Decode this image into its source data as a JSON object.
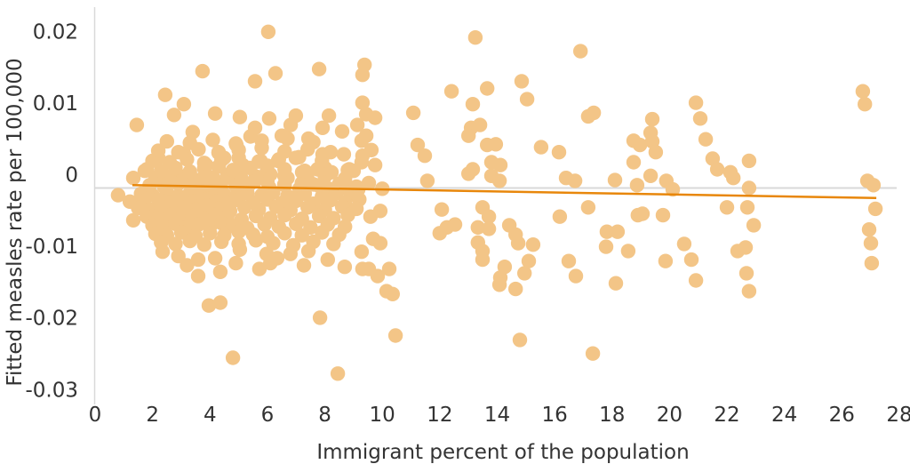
{
  "chart_data": {
    "type": "scatter",
    "title": "",
    "xlabel": "Immigrant percent of the population",
    "ylabel": "Fitted measles rate per 100,000",
    "xlim": [
      0,
      28
    ],
    "ylim": [
      -0.031,
      0.0252
    ],
    "grid": "zero-line-only",
    "legend_position": "none",
    "x_ticks": [
      0,
      2,
      4,
      6,
      8,
      10,
      12,
      14,
      16,
      18,
      20,
      22,
      24,
      26,
      28
    ],
    "x_tick_labels": [
      "0",
      "2",
      "4",
      "6",
      "8",
      "10",
      "12",
      "14",
      "16",
      "18",
      "20",
      "22",
      "24",
      "26",
      "28"
    ],
    "y_ticks": [
      0.02,
      0.01,
      0,
      -0.01,
      -0.02,
      -0.03
    ],
    "y_tick_labels": [
      "0.02",
      "0.01",
      "0",
      "-0.01",
      "-0.02",
      "-0.03"
    ],
    "point_color": "#F3C587",
    "trend_color": "#E8870B",
    "grid_color": "#D9D9D9",
    "text_color": "#333333",
    "trendline": {
      "x1": 1.3,
      "y1": 0.0004,
      "x2": 27.2,
      "y2": -0.0014
    },
    "points": [
      [
        6.03,
        0.0218
      ],
      [
        13.24,
        0.021
      ],
      [
        16.9,
        0.0191
      ],
      [
        9.38,
        0.0172
      ],
      [
        9.31,
        0.0158
      ],
      [
        3.74,
        0.0163
      ],
      [
        5.57,
        0.0149
      ],
      [
        6.28,
        0.016
      ],
      [
        7.8,
        0.0166
      ],
      [
        14.85,
        0.0149
      ],
      [
        12.41,
        0.0135
      ],
      [
        13.65,
        0.0139
      ],
      [
        15.04,
        0.0124
      ],
      [
        11.08,
        0.0105
      ],
      [
        13.15,
        0.0117
      ],
      [
        17.36,
        0.0105
      ],
      [
        17.17,
        0.01
      ],
      [
        26.73,
        0.0135
      ],
      [
        26.8,
        0.0117
      ],
      [
        20.92,
        0.0119
      ],
      [
        21.07,
        0.0097
      ],
      [
        2.44,
        0.013
      ],
      [
        3.09,
        0.0117
      ],
      [
        2.75,
        0.0102
      ],
      [
        4.18,
        0.0104
      ],
      [
        5.04,
        0.0099
      ],
      [
        1.45,
        0.0088
      ],
      [
        3.4,
        0.0078
      ],
      [
        4.3,
        0.005
      ],
      [
        2.2,
        0.0042
      ],
      [
        3.09,
        0.0048
      ],
      [
        3.87,
        0.0032
      ],
      [
        4.49,
        0.0042
      ],
      [
        4.92,
        0.006
      ],
      [
        5.41,
        0.0072
      ],
      [
        5.57,
        0.0084
      ],
      [
        6.06,
        0.0097
      ],
      [
        6.5,
        0.0073
      ],
      [
        6.81,
        0.0088
      ],
      [
        6.99,
        0.0101
      ],
      [
        7.43,
        0.0069
      ],
      [
        7.92,
        0.0084
      ],
      [
        8.14,
        0.0101
      ],
      [
        8.6,
        0.0079
      ],
      [
        9.13,
        0.0088
      ],
      [
        9.28,
        0.0066
      ],
      [
        8.66,
        0.0047
      ],
      [
        7.92,
        0.0047
      ],
      [
        6.99,
        0.0042
      ],
      [
        6.37,
        0.0038
      ],
      [
        5.76,
        0.0038
      ],
      [
        5.14,
        0.0032
      ],
      [
        5.97,
        0.0022
      ],
      [
        6.59,
        0.0017
      ],
      [
        7.21,
        0.0022
      ],
      [
        7.74,
        0.0026
      ],
      [
        8.23,
        0.0022
      ],
      [
        8.85,
        0.0026
      ],
      [
        9.28,
        0.0036
      ],
      [
        1.33,
        0.0014
      ],
      [
        1.73,
        0.0024
      ],
      [
        2.17,
        0.0014
      ],
      [
        2.66,
        0.0017
      ],
      [
        3.09,
        0.001
      ],
      [
        3.5,
        0.0005
      ],
      [
        3.9,
        0.0014
      ],
      [
        4.33,
        0.0007
      ],
      [
        4.73,
        0.0014
      ],
      [
        5.14,
        0.0005
      ],
      [
        5.57,
        0.001
      ],
      [
        6.06,
        0.0001
      ],
      [
        6.59,
        0.0005
      ],
      [
        7.12,
        -0.0001
      ],
      [
        7.61,
        0.0005
      ],
      [
        8.14,
        -0.0001
      ],
      [
        8.66,
        0.0004
      ],
      [
        9.16,
        -0.0002
      ],
      [
        9.31,
        0.0119
      ],
      [
        9.44,
        0.0103
      ],
      [
        9.44,
        0.0073
      ],
      [
        9.62,
        0.0053
      ],
      [
        9.75,
        0.0032
      ],
      [
        9.31,
        0.0045
      ],
      [
        9.0,
        0.0024
      ],
      [
        8.7,
        0.0001
      ],
      [
        9.07,
        -0.0005
      ],
      [
        9.53,
        0.0007
      ],
      [
        10.0,
        -0.0001
      ],
      [
        9.75,
        0.0098
      ],
      [
        11.23,
        0.006
      ],
      [
        11.48,
        0.0045
      ],
      [
        11.57,
        0.001
      ],
      [
        9.59,
        -0.004
      ],
      [
        9.93,
        -0.0032
      ],
      [
        9.68,
        -0.0071
      ],
      [
        9.93,
        -0.0077
      ],
      [
        9.53,
        -0.0113
      ],
      [
        9.84,
        -0.0123
      ],
      [
        10.24,
        -0.0113
      ],
      [
        10.15,
        -0.0144
      ],
      [
        10.36,
        -0.0148
      ],
      [
        10.46,
        -0.0206
      ],
      [
        12.07,
        -0.003
      ],
      [
        12.0,
        -0.0063
      ],
      [
        12.25,
        -0.0055
      ],
      [
        12.53,
        -0.0051
      ],
      [
        13.49,
        -0.0027
      ],
      [
        13.71,
        -0.004
      ],
      [
        13.33,
        -0.0055
      ],
      [
        13.71,
        -0.0057
      ],
      [
        13.33,
        -0.0076
      ],
      [
        13.49,
        -0.0088
      ],
      [
        13.49,
        -0.01
      ],
      [
        14.42,
        -0.0052
      ],
      [
        14.64,
        -0.0065
      ],
      [
        14.73,
        -0.0077
      ],
      [
        15.25,
        -0.0079
      ],
      [
        14.26,
        -0.011
      ],
      [
        15.1,
        -0.0102
      ],
      [
        14.95,
        -0.0119
      ],
      [
        14.11,
        -0.0125
      ],
      [
        14.08,
        -0.0135
      ],
      [
        14.64,
        -0.0141
      ],
      [
        14.79,
        -0.0212
      ],
      [
        13.09,
        0.0084
      ],
      [
        13.4,
        0.0088
      ],
      [
        13.0,
        0.0073
      ],
      [
        13.15,
        0.0026
      ],
      [
        13.0,
        0.002
      ],
      [
        13.65,
        0.006
      ],
      [
        13.95,
        0.0061
      ],
      [
        13.8,
        0.0036
      ],
      [
        14.11,
        0.0032
      ],
      [
        13.8,
        0.0017
      ],
      [
        14.08,
        0.001
      ],
      [
        15.53,
        0.0057
      ],
      [
        16.15,
        0.005
      ],
      [
        16.18,
        -0.004
      ],
      [
        16.49,
        -0.0102
      ],
      [
        16.74,
        -0.0123
      ],
      [
        17.17,
        -0.0027
      ],
      [
        18.9,
        -0.0038
      ],
      [
        17.82,
        -0.0061
      ],
      [
        18.19,
        -0.0061
      ],
      [
        17.79,
        -0.0082
      ],
      [
        18.56,
        -0.0088
      ],
      [
        18.13,
        -0.0133
      ],
      [
        17.33,
        -0.0231
      ],
      [
        16.4,
        0.0014
      ],
      [
        16.71,
        0.001
      ],
      [
        18.1,
        0.0011
      ],
      [
        18.87,
        0.0004
      ],
      [
        18.75,
        0.0066
      ],
      [
        18.75,
        0.0036
      ],
      [
        19.4,
        0.0096
      ],
      [
        19.34,
        0.0077
      ],
      [
        19.4,
        0.0065
      ],
      [
        19.52,
        0.005
      ],
      [
        18.97,
        0.006
      ],
      [
        21.26,
        0.0068
      ],
      [
        21.5,
        0.0041
      ],
      [
        21.66,
        0.0026
      ],
      [
        22.12,
        0.0022
      ],
      [
        22.22,
        0.0014
      ],
      [
        22.77,
        0.0038
      ],
      [
        22.77,
        0.0
      ],
      [
        19.34,
        0.0017
      ],
      [
        19.89,
        0.001
      ],
      [
        20.11,
        -0.0002
      ],
      [
        19.06,
        -0.0036
      ],
      [
        19.77,
        -0.0038
      ],
      [
        22.0,
        -0.0027
      ],
      [
        22.71,
        -0.0027
      ],
      [
        22.93,
        -0.0052
      ],
      [
        20.51,
        -0.0078
      ],
      [
        22.37,
        -0.0088
      ],
      [
        22.65,
        -0.0083
      ],
      [
        19.86,
        -0.0102
      ],
      [
        20.76,
        -0.01
      ],
      [
        20.92,
        -0.0129
      ],
      [
        22.68,
        -0.0119
      ],
      [
        22.77,
        -0.0144
      ],
      [
        26.89,
        0.001
      ],
      [
        27.1,
        0.0004
      ],
      [
        27.17,
        -0.0029
      ],
      [
        26.95,
        -0.0058
      ],
      [
        27.01,
        -0.0077
      ],
      [
        27.04,
        -0.0105
      ],
      [
        2.35,
        -0.0089
      ],
      [
        3.59,
        -0.01
      ],
      [
        3.59,
        -0.0123
      ],
      [
        4.18,
        -0.0098
      ],
      [
        4.36,
        -0.0117
      ],
      [
        5.04,
        -0.0086
      ],
      [
        5.72,
        -0.0113
      ],
      [
        5.97,
        -0.0092
      ],
      [
        6.34,
        -0.0098
      ],
      [
        7.27,
        -0.0108
      ],
      [
        7.43,
        -0.0088
      ],
      [
        8.69,
        -0.011
      ],
      [
        9.28,
        -0.0089
      ],
      [
        9.31,
        -0.0113
      ],
      [
        3.96,
        -0.0164
      ],
      [
        4.36,
        -0.016
      ],
      [
        7.83,
        -0.0181
      ],
      [
        4.8,
        -0.0237
      ],
      [
        8.45,
        -0.0259
      ],
      [
        0.8,
        -0.001
      ],
      [
        1.21,
        -0.0019
      ],
      [
        1.33,
        -0.0045
      ],
      [
        1.6,
        -0.0008
      ],
      [
        2.0,
        -0.001
      ],
      [
        2.5,
        -0.0006
      ],
      [
        2.9,
        -0.0011
      ],
      [
        3.3,
        -0.0007
      ],
      [
        3.7,
        -0.001
      ],
      [
        4.1,
        -0.0006
      ],
      [
        4.5,
        -0.0009
      ],
      [
        4.9,
        -0.0012
      ],
      [
        5.3,
        -0.0007
      ],
      [
        5.8,
        -0.001
      ],
      [
        6.2,
        -0.0006
      ],
      [
        6.7,
        -0.0011
      ],
      [
        7.3,
        -0.0008
      ],
      [
        7.9,
        -0.0012
      ],
      [
        8.4,
        -0.0007
      ],
      [
        8.9,
        -0.001
      ],
      [
        1.7,
        -0.0018
      ],
      [
        2.2,
        -0.0016
      ],
      [
        2.6,
        -0.002
      ],
      [
        3.0,
        -0.0017
      ],
      [
        3.4,
        -0.0021
      ],
      [
        3.8,
        -0.0016
      ],
      [
        4.2,
        -0.0019
      ],
      [
        4.6,
        -0.0022
      ],
      [
        5.0,
        -0.0017
      ],
      [
        5.5,
        -0.002
      ],
      [
        6.0,
        -0.0016
      ],
      [
        6.5,
        -0.0021
      ],
      [
        7.0,
        -0.0018
      ],
      [
        7.6,
        -0.0022
      ],
      [
        8.2,
        -0.0017
      ],
      [
        8.7,
        -0.002
      ],
      [
        9.2,
        -0.0016
      ],
      [
        1.5,
        -0.0028
      ],
      [
        1.9,
        -0.003
      ],
      [
        2.3,
        -0.0026
      ],
      [
        2.7,
        -0.0031
      ],
      [
        3.1,
        -0.0027
      ],
      [
        3.5,
        -0.003
      ],
      [
        3.9,
        -0.0025
      ],
      [
        4.3,
        -0.0029
      ],
      [
        4.7,
        -0.0032
      ],
      [
        5.2,
        -0.0027
      ],
      [
        5.7,
        -0.003
      ],
      [
        6.3,
        -0.0026
      ],
      [
        6.8,
        -0.0031
      ],
      [
        7.4,
        -0.0027
      ],
      [
        8.0,
        -0.003
      ],
      [
        8.6,
        -0.0026
      ],
      [
        9.1,
        -0.0029
      ],
      [
        1.8,
        -0.004
      ],
      [
        2.2,
        -0.0042
      ],
      [
        2.6,
        -0.0038
      ],
      [
        3.0,
        -0.0043
      ],
      [
        3.4,
        -0.0039
      ],
      [
        3.8,
        -0.0042
      ],
      [
        4.2,
        -0.0037
      ],
      [
        4.6,
        -0.0041
      ],
      [
        5.1,
        -0.0044
      ],
      [
        5.6,
        -0.0039
      ],
      [
        6.1,
        -0.0042
      ],
      [
        6.6,
        -0.0038
      ],
      [
        7.2,
        -0.0043
      ],
      [
        7.8,
        -0.0039
      ],
      [
        8.3,
        -0.0042
      ],
      [
        8.8,
        -0.0038
      ],
      [
        2.0,
        -0.0052
      ],
      [
        2.4,
        -0.0054
      ],
      [
        2.8,
        -0.005
      ],
      [
        3.2,
        -0.0055
      ],
      [
        3.6,
        -0.0051
      ],
      [
        4.0,
        -0.0054
      ],
      [
        4.4,
        -0.0049
      ],
      [
        4.8,
        -0.0053
      ],
      [
        5.3,
        -0.0056
      ],
      [
        5.9,
        -0.0051
      ],
      [
        6.4,
        -0.0054
      ],
      [
        7.0,
        -0.005
      ],
      [
        7.5,
        -0.0055
      ],
      [
        8.1,
        -0.0051
      ],
      [
        8.7,
        -0.0054
      ],
      [
        2.1,
        -0.0064
      ],
      [
        2.5,
        -0.0066
      ],
      [
        3.0,
        -0.0062
      ],
      [
        3.5,
        -0.0067
      ],
      [
        4.0,
        -0.0063
      ],
      [
        4.5,
        -0.0066
      ],
      [
        5.0,
        -0.0061
      ],
      [
        5.5,
        -0.0065
      ],
      [
        6.0,
        -0.0068
      ],
      [
        6.6,
        -0.0063
      ],
      [
        7.2,
        -0.0066
      ],
      [
        7.9,
        -0.0062
      ],
      [
        8.5,
        -0.0065
      ],
      [
        2.3,
        -0.0076
      ],
      [
        2.8,
        -0.0078
      ],
      [
        3.3,
        -0.0074
      ],
      [
        3.8,
        -0.0079
      ],
      [
        4.4,
        -0.0075
      ],
      [
        5.0,
        -0.0078
      ],
      [
        5.6,
        -0.0073
      ],
      [
        6.2,
        -0.0077
      ],
      [
        6.9,
        -0.008
      ],
      [
        7.6,
        -0.0075
      ],
      [
        8.3,
        -0.0078
      ],
      [
        1.9,
        0.0004
      ],
      [
        2.4,
        0.0002
      ],
      [
        2.9,
        0.0006
      ],
      [
        3.4,
        0.0001
      ],
      [
        3.9,
        0.0005
      ],
      [
        4.4,
        0.0008
      ],
      [
        4.9,
        0.0003
      ],
      [
        5.4,
        0.0006
      ],
      [
        6.0,
        0.0009
      ],
      [
        6.6,
        0.0004
      ],
      [
        7.2,
        0.0007
      ],
      [
        7.8,
        0.0003
      ],
      [
        8.5,
        0.0006
      ],
      [
        9.1,
        0.0002
      ],
      [
        2.1,
        0.0014
      ],
      [
        2.6,
        0.0012
      ],
      [
        3.1,
        0.0016
      ],
      [
        3.6,
        0.0011
      ],
      [
        4.1,
        0.0015
      ],
      [
        4.6,
        0.0018
      ],
      [
        5.1,
        0.0013
      ],
      [
        5.6,
        0.0016
      ],
      [
        6.1,
        0.0019
      ],
      [
        6.7,
        0.0014
      ],
      [
        7.4,
        0.0012
      ],
      [
        8.0,
        0.0016
      ],
      [
        8.7,
        0.0013
      ],
      [
        1.8,
        0.0026
      ],
      [
        2.3,
        0.0024
      ],
      [
        2.8,
        0.0028
      ],
      [
        3.3,
        0.0023
      ],
      [
        3.8,
        0.0027
      ],
      [
        4.3,
        0.003
      ],
      [
        4.8,
        0.0025
      ],
      [
        5.4,
        0.0028
      ],
      [
        6.0,
        0.0031
      ],
      [
        6.6,
        0.0026
      ],
      [
        7.3,
        0.0024
      ],
      [
        8.0,
        0.0028
      ],
      [
        8.8,
        0.0025
      ],
      [
        2.0,
        0.0038
      ],
      [
        2.6,
        0.0036
      ],
      [
        3.2,
        0.004
      ],
      [
        3.8,
        0.0035
      ],
      [
        4.4,
        0.0039
      ],
      [
        5.0,
        0.0042
      ],
      [
        5.7,
        0.0037
      ],
      [
        6.4,
        0.004
      ],
      [
        7.1,
        0.0043
      ],
      [
        7.9,
        0.0038
      ],
      [
        2.2,
        0.0052
      ],
      [
        2.9,
        0.005
      ],
      [
        3.6,
        0.0054
      ],
      [
        4.3,
        0.0049
      ],
      [
        5.0,
        0.0053
      ],
      [
        5.8,
        0.0056
      ],
      [
        6.6,
        0.0051
      ],
      [
        7.4,
        0.0054
      ],
      [
        8.2,
        0.005
      ],
      [
        2.5,
        0.0065
      ],
      [
        3.3,
        0.0063
      ],
      [
        4.1,
        0.0067
      ],
      [
        4.9,
        0.0062
      ],
      [
        5.8,
        0.0066
      ],
      [
        6.7,
        0.0069
      ],
      [
        7.6,
        0.0064
      ],
      [
        2.9,
        -0.0095
      ],
      [
        4.9,
        -0.0105
      ],
      [
        6.8,
        -0.0092
      ],
      [
        8.1,
        -0.01
      ],
      [
        3.2,
        -0.0108
      ],
      [
        6.1,
        -0.0105
      ]
    ]
  }
}
